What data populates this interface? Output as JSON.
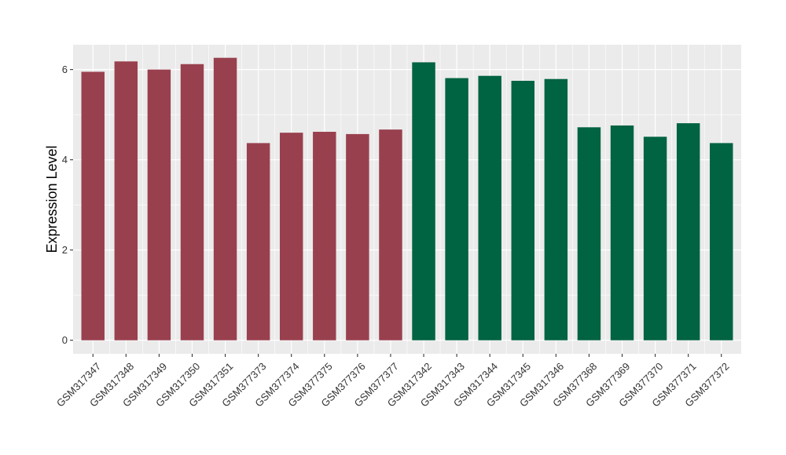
{
  "chart_data": {
    "type": "bar",
    "title": "",
    "xlabel": "",
    "ylabel": "Expression Level",
    "ylim": [
      -0.3,
      6.55
    ],
    "yticks": [
      0,
      2,
      4,
      6
    ],
    "grid": true,
    "legend": "none",
    "categories": [
      "GSM317347",
      "GSM317348",
      "GSM317349",
      "GSM317350",
      "GSM317351",
      "GSM377373",
      "GSM377374",
      "GSM377375",
      "GSM377376",
      "GSM377377",
      "GSM317342",
      "GSM317343",
      "GSM317344",
      "GSM317345",
      "GSM317346",
      "GSM377368",
      "GSM377369",
      "GSM377370",
      "GSM377371",
      "GSM377372"
    ],
    "values": [
      5.95,
      6.18,
      6.0,
      6.12,
      6.26,
      4.37,
      4.6,
      4.62,
      4.57,
      4.67,
      6.16,
      5.81,
      5.86,
      5.75,
      5.79,
      4.72,
      4.76,
      4.51,
      4.81,
      4.37
    ],
    "bar_colors": [
      "#99404f",
      "#99404f",
      "#99404f",
      "#99404f",
      "#99404f",
      "#99404f",
      "#99404f",
      "#99404f",
      "#99404f",
      "#99404f",
      "#006341",
      "#006341",
      "#006341",
      "#006341",
      "#006341",
      "#006341",
      "#006341",
      "#006341",
      "#006341",
      "#006341"
    ],
    "panel_background": "#ebebeb",
    "grid_color": "#ffffff"
  }
}
